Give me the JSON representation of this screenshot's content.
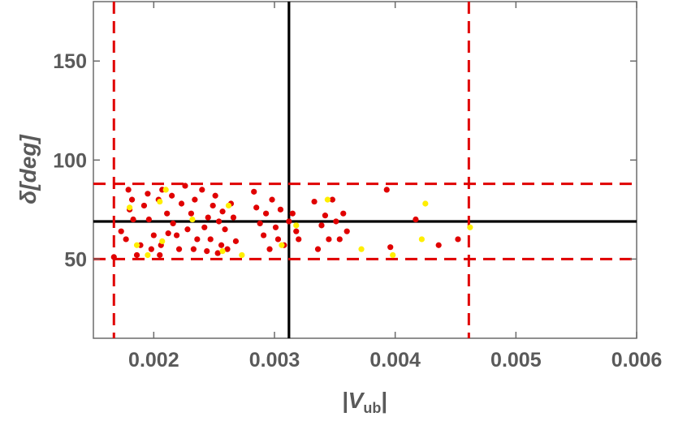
{
  "chart_data": {
    "type": "scatter",
    "title": "",
    "xlabel": "|V",
    "xlabel_sub": "ub",
    "xlabel_close": "|",
    "ylabel": "δ[deg]",
    "xlim": [
      0.0015,
      0.006
    ],
    "ylim": [
      10,
      180
    ],
    "x_ticks": [
      0.002,
      0.003,
      0.004,
      0.005,
      0.006
    ],
    "x_tick_labels": [
      "0.002",
      "0.003",
      "0.004",
      "0.005",
      "0.006"
    ],
    "y_ticks": [
      50,
      100,
      150
    ],
    "y_tick_labels": [
      "50",
      "100",
      "150"
    ],
    "grid": false,
    "reference_lines": [
      {
        "orientation": "vertical",
        "value": 0.00312,
        "style": "solid",
        "color": "#000000"
      },
      {
        "orientation": "horizontal",
        "value": 69,
        "style": "solid",
        "color": "#000000"
      },
      {
        "orientation": "vertical",
        "value": 0.00167,
        "style": "dashed",
        "color": "#e00000"
      },
      {
        "orientation": "vertical",
        "value": 0.00461,
        "style": "dashed",
        "color": "#e00000"
      },
      {
        "orientation": "horizontal",
        "value": 50,
        "style": "dashed",
        "color": "#e00000"
      },
      {
        "orientation": "horizontal",
        "value": 88,
        "style": "dashed",
        "color": "#e00000"
      }
    ],
    "series": [
      {
        "color": "#e00000",
        "points": [
          [
            0.00167,
            51
          ],
          [
            0.00173,
            64
          ],
          [
            0.00177,
            60
          ],
          [
            0.00179,
            85
          ],
          [
            0.0018,
            75
          ],
          [
            0.00182,
            80
          ],
          [
            0.00183,
            70
          ],
          [
            0.00186,
            52
          ],
          [
            0.00189,
            57
          ],
          [
            0.00192,
            77
          ],
          [
            0.00195,
            83
          ],
          [
            0.00196,
            70
          ],
          [
            0.00198,
            55
          ],
          [
            0.002,
            62
          ],
          [
            0.00204,
            80
          ],
          [
            0.00205,
            52
          ],
          [
            0.00206,
            57
          ],
          [
            0.00207,
            85
          ],
          [
            0.00211,
            73
          ],
          [
            0.00212,
            63
          ],
          [
            0.00215,
            82
          ],
          [
            0.00216,
            68
          ],
          [
            0.00219,
            62
          ],
          [
            0.00221,
            55
          ],
          [
            0.00223,
            78
          ],
          [
            0.00226,
            87
          ],
          [
            0.00228,
            65
          ],
          [
            0.00231,
            73
          ],
          [
            0.00233,
            55
          ],
          [
            0.00234,
            80
          ],
          [
            0.00236,
            60
          ],
          [
            0.0024,
            85
          ],
          [
            0.00242,
            66
          ],
          [
            0.00244,
            54
          ],
          [
            0.00245,
            71
          ],
          [
            0.00247,
            60
          ],
          [
            0.00249,
            77
          ],
          [
            0.00251,
            82
          ],
          [
            0.00253,
            53
          ],
          [
            0.00254,
            69
          ],
          [
            0.00256,
            57
          ],
          [
            0.00257,
            74
          ],
          [
            0.00259,
            65
          ],
          [
            0.00261,
            55
          ],
          [
            0.00264,
            78
          ],
          [
            0.00266,
            71
          ],
          [
            0.00268,
            59
          ],
          [
            0.00283,
            84
          ],
          [
            0.00285,
            76
          ],
          [
            0.00288,
            68
          ],
          [
            0.00291,
            62
          ],
          [
            0.00293,
            73
          ],
          [
            0.00296,
            55
          ],
          [
            0.00298,
            80
          ],
          [
            0.00301,
            66
          ],
          [
            0.00303,
            60
          ],
          [
            0.00305,
            75
          ],
          [
            0.00308,
            57
          ],
          [
            0.00312,
            69
          ],
          [
            0.00315,
            73
          ],
          [
            0.00318,
            64
          ],
          [
            0.0032,
            60
          ],
          [
            0.00333,
            79
          ],
          [
            0.00336,
            55
          ],
          [
            0.00339,
            67
          ],
          [
            0.00342,
            72
          ],
          [
            0.00345,
            60
          ],
          [
            0.00348,
            80
          ],
          [
            0.00351,
            69
          ],
          [
            0.00354,
            60
          ],
          [
            0.00357,
            73
          ],
          [
            0.0036,
            64
          ],
          [
            0.00393,
            85
          ],
          [
            0.00396,
            56
          ],
          [
            0.00417,
            70
          ],
          [
            0.00436,
            57
          ],
          [
            0.00452,
            60
          ]
        ]
      },
      {
        "color": "#ffee00",
        "points": [
          [
            0.0018,
            76
          ],
          [
            0.00186,
            57
          ],
          [
            0.00195,
            52
          ],
          [
            0.00205,
            79
          ],
          [
            0.00207,
            59
          ],
          [
            0.0021,
            85
          ],
          [
            0.00232,
            70
          ],
          [
            0.00257,
            54
          ],
          [
            0.00262,
            77
          ],
          [
            0.00273,
            52
          ],
          [
            0.00306,
            57
          ],
          [
            0.00318,
            67
          ],
          [
            0.00344,
            80
          ],
          [
            0.00372,
            55
          ],
          [
            0.00398,
            52
          ],
          [
            0.00422,
            60
          ],
          [
            0.00425,
            78
          ],
          [
            0.00462,
            66
          ]
        ]
      }
    ]
  }
}
